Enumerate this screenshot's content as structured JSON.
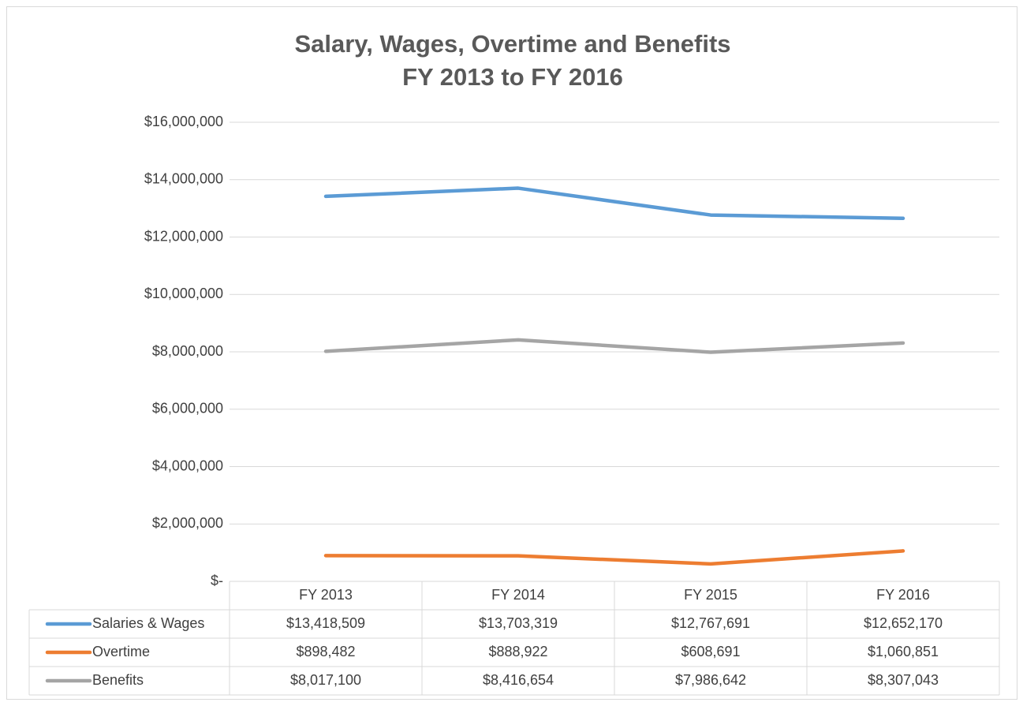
{
  "chart_data": {
    "type": "line",
    "title": "Salary, Wages, Overtime and Benefits",
    "subtitle": "FY 2013 to FY 2016",
    "categories": [
      "FY 2013",
      "FY 2014",
      "FY 2015",
      "FY 2016"
    ],
    "series": [
      {
        "name": "Salaries & Wages",
        "color": "#5b9bd5",
        "values": [
          13418509,
          13703319,
          12767691,
          12652170
        ],
        "value_labels": [
          "$13,418,509",
          "$13,703,319",
          "$12,767,691",
          "$12,652,170"
        ]
      },
      {
        "name": "Overtime",
        "color": "#ed7d31",
        "values": [
          898482,
          888922,
          608691,
          1060851
        ],
        "value_labels": [
          "$898,482",
          "$888,922",
          "$608,691",
          "$1,060,851"
        ]
      },
      {
        "name": "Benefits",
        "color": "#a5a5a5",
        "values": [
          8017100,
          8416654,
          7986642,
          8307043
        ],
        "value_labels": [
          "$8,017,100",
          "$8,416,654",
          "$7,986,642",
          "$8,307,043"
        ]
      }
    ],
    "ylim": [
      0,
      16000000
    ],
    "yticks": [
      {
        "value": 0,
        "label": "$-"
      },
      {
        "value": 2000000,
        "label": "$2,000,000"
      },
      {
        "value": 4000000,
        "label": "$4,000,000"
      },
      {
        "value": 6000000,
        "label": "$6,000,000"
      },
      {
        "value": 8000000,
        "label": "$8,000,000"
      },
      {
        "value": 10000000,
        "label": "$10,000,000"
      },
      {
        "value": 12000000,
        "label": "$12,000,000"
      },
      {
        "value": 14000000,
        "label": "$14,000,000"
      },
      {
        "value": 16000000,
        "label": "$16,000,000"
      }
    ],
    "grid": true,
    "data_table": true
  }
}
